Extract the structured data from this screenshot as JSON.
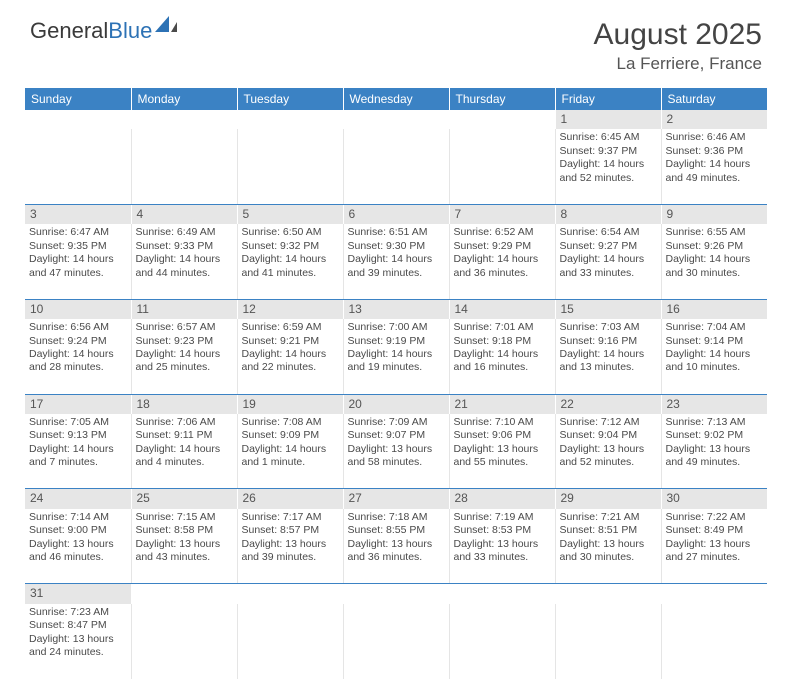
{
  "logo": {
    "part1": "General",
    "part2": "Blue"
  },
  "title": {
    "month": "August 2025",
    "location": "La Ferriere, France"
  },
  "colors": {
    "header_bg": "#3b82c4",
    "header_text": "#ffffff",
    "daynum_bg": "#e6e6e6",
    "row_border": "#3b82c4",
    "body_text": "#4a4a4a"
  },
  "weekdays": [
    "Sunday",
    "Monday",
    "Tuesday",
    "Wednesday",
    "Thursday",
    "Friday",
    "Saturday"
  ],
  "weeks": [
    [
      null,
      null,
      null,
      null,
      null,
      {
        "day": "1",
        "sunrise": "Sunrise: 6:45 AM",
        "sunset": "Sunset: 9:37 PM",
        "daylight1": "Daylight: 14 hours",
        "daylight2": "and 52 minutes."
      },
      {
        "day": "2",
        "sunrise": "Sunrise: 6:46 AM",
        "sunset": "Sunset: 9:36 PM",
        "daylight1": "Daylight: 14 hours",
        "daylight2": "and 49 minutes."
      }
    ],
    [
      {
        "day": "3",
        "sunrise": "Sunrise: 6:47 AM",
        "sunset": "Sunset: 9:35 PM",
        "daylight1": "Daylight: 14 hours",
        "daylight2": "and 47 minutes."
      },
      {
        "day": "4",
        "sunrise": "Sunrise: 6:49 AM",
        "sunset": "Sunset: 9:33 PM",
        "daylight1": "Daylight: 14 hours",
        "daylight2": "and 44 minutes."
      },
      {
        "day": "5",
        "sunrise": "Sunrise: 6:50 AM",
        "sunset": "Sunset: 9:32 PM",
        "daylight1": "Daylight: 14 hours",
        "daylight2": "and 41 minutes."
      },
      {
        "day": "6",
        "sunrise": "Sunrise: 6:51 AM",
        "sunset": "Sunset: 9:30 PM",
        "daylight1": "Daylight: 14 hours",
        "daylight2": "and 39 minutes."
      },
      {
        "day": "7",
        "sunrise": "Sunrise: 6:52 AM",
        "sunset": "Sunset: 9:29 PM",
        "daylight1": "Daylight: 14 hours",
        "daylight2": "and 36 minutes."
      },
      {
        "day": "8",
        "sunrise": "Sunrise: 6:54 AM",
        "sunset": "Sunset: 9:27 PM",
        "daylight1": "Daylight: 14 hours",
        "daylight2": "and 33 minutes."
      },
      {
        "day": "9",
        "sunrise": "Sunrise: 6:55 AM",
        "sunset": "Sunset: 9:26 PM",
        "daylight1": "Daylight: 14 hours",
        "daylight2": "and 30 minutes."
      }
    ],
    [
      {
        "day": "10",
        "sunrise": "Sunrise: 6:56 AM",
        "sunset": "Sunset: 9:24 PM",
        "daylight1": "Daylight: 14 hours",
        "daylight2": "and 28 minutes."
      },
      {
        "day": "11",
        "sunrise": "Sunrise: 6:57 AM",
        "sunset": "Sunset: 9:23 PM",
        "daylight1": "Daylight: 14 hours",
        "daylight2": "and 25 minutes."
      },
      {
        "day": "12",
        "sunrise": "Sunrise: 6:59 AM",
        "sunset": "Sunset: 9:21 PM",
        "daylight1": "Daylight: 14 hours",
        "daylight2": "and 22 minutes."
      },
      {
        "day": "13",
        "sunrise": "Sunrise: 7:00 AM",
        "sunset": "Sunset: 9:19 PM",
        "daylight1": "Daylight: 14 hours",
        "daylight2": "and 19 minutes."
      },
      {
        "day": "14",
        "sunrise": "Sunrise: 7:01 AM",
        "sunset": "Sunset: 9:18 PM",
        "daylight1": "Daylight: 14 hours",
        "daylight2": "and 16 minutes."
      },
      {
        "day": "15",
        "sunrise": "Sunrise: 7:03 AM",
        "sunset": "Sunset: 9:16 PM",
        "daylight1": "Daylight: 14 hours",
        "daylight2": "and 13 minutes."
      },
      {
        "day": "16",
        "sunrise": "Sunrise: 7:04 AM",
        "sunset": "Sunset: 9:14 PM",
        "daylight1": "Daylight: 14 hours",
        "daylight2": "and 10 minutes."
      }
    ],
    [
      {
        "day": "17",
        "sunrise": "Sunrise: 7:05 AM",
        "sunset": "Sunset: 9:13 PM",
        "daylight1": "Daylight: 14 hours",
        "daylight2": "and 7 minutes."
      },
      {
        "day": "18",
        "sunrise": "Sunrise: 7:06 AM",
        "sunset": "Sunset: 9:11 PM",
        "daylight1": "Daylight: 14 hours",
        "daylight2": "and 4 minutes."
      },
      {
        "day": "19",
        "sunrise": "Sunrise: 7:08 AM",
        "sunset": "Sunset: 9:09 PM",
        "daylight1": "Daylight: 14 hours",
        "daylight2": "and 1 minute."
      },
      {
        "day": "20",
        "sunrise": "Sunrise: 7:09 AM",
        "sunset": "Sunset: 9:07 PM",
        "daylight1": "Daylight: 13 hours",
        "daylight2": "and 58 minutes."
      },
      {
        "day": "21",
        "sunrise": "Sunrise: 7:10 AM",
        "sunset": "Sunset: 9:06 PM",
        "daylight1": "Daylight: 13 hours",
        "daylight2": "and 55 minutes."
      },
      {
        "day": "22",
        "sunrise": "Sunrise: 7:12 AM",
        "sunset": "Sunset: 9:04 PM",
        "daylight1": "Daylight: 13 hours",
        "daylight2": "and 52 minutes."
      },
      {
        "day": "23",
        "sunrise": "Sunrise: 7:13 AM",
        "sunset": "Sunset: 9:02 PM",
        "daylight1": "Daylight: 13 hours",
        "daylight2": "and 49 minutes."
      }
    ],
    [
      {
        "day": "24",
        "sunrise": "Sunrise: 7:14 AM",
        "sunset": "Sunset: 9:00 PM",
        "daylight1": "Daylight: 13 hours",
        "daylight2": "and 46 minutes."
      },
      {
        "day": "25",
        "sunrise": "Sunrise: 7:15 AM",
        "sunset": "Sunset: 8:58 PM",
        "daylight1": "Daylight: 13 hours",
        "daylight2": "and 43 minutes."
      },
      {
        "day": "26",
        "sunrise": "Sunrise: 7:17 AM",
        "sunset": "Sunset: 8:57 PM",
        "daylight1": "Daylight: 13 hours",
        "daylight2": "and 39 minutes."
      },
      {
        "day": "27",
        "sunrise": "Sunrise: 7:18 AM",
        "sunset": "Sunset: 8:55 PM",
        "daylight1": "Daylight: 13 hours",
        "daylight2": "and 36 minutes."
      },
      {
        "day": "28",
        "sunrise": "Sunrise: 7:19 AM",
        "sunset": "Sunset: 8:53 PM",
        "daylight1": "Daylight: 13 hours",
        "daylight2": "and 33 minutes."
      },
      {
        "day": "29",
        "sunrise": "Sunrise: 7:21 AM",
        "sunset": "Sunset: 8:51 PM",
        "daylight1": "Daylight: 13 hours",
        "daylight2": "and 30 minutes."
      },
      {
        "day": "30",
        "sunrise": "Sunrise: 7:22 AM",
        "sunset": "Sunset: 8:49 PM",
        "daylight1": "Daylight: 13 hours",
        "daylight2": "and 27 minutes."
      }
    ],
    [
      {
        "day": "31",
        "sunrise": "Sunrise: 7:23 AM",
        "sunset": "Sunset: 8:47 PM",
        "daylight1": "Daylight: 13 hours",
        "daylight2": "and 24 minutes."
      },
      null,
      null,
      null,
      null,
      null,
      null
    ]
  ]
}
